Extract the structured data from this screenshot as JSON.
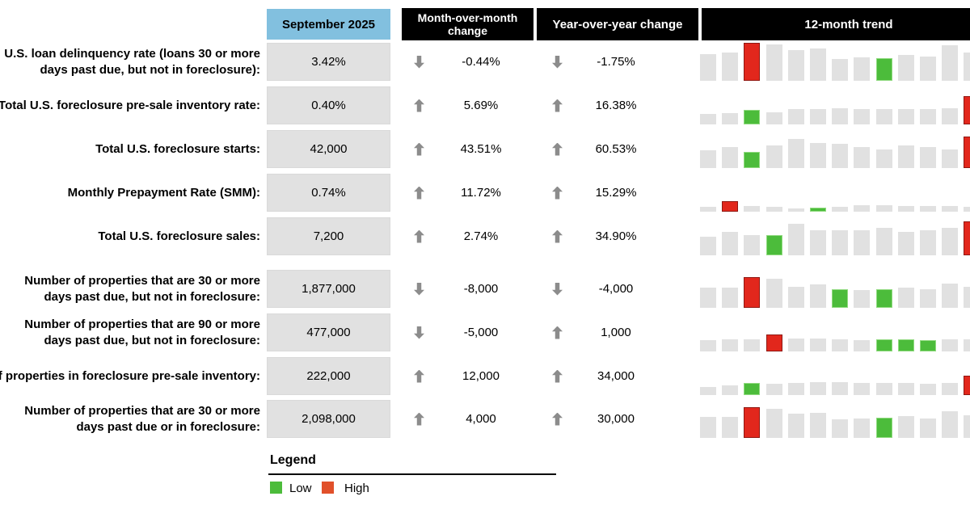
{
  "header": {
    "period": "September 2025",
    "mom": "Month-over-month change",
    "yoy": "Year-over-year change",
    "trend": "12-month trend"
  },
  "legend": {
    "title": "Legend",
    "low_label": "Low",
    "high_label": "High"
  },
  "colors": {
    "period_header_bg": "#82C0DF",
    "change_header_bg": "#000000",
    "change_header_text": "#FFFFFF",
    "value_box_bg": "#E1E1E1",
    "bar_gray": "#E1E1E1",
    "bar_low_green": "#4CBC3B",
    "bar_low_border": "#90DA7F",
    "bar_high_red": "#E2271C",
    "bar_high_border": "#8F1812",
    "legend_high_orange": "#E1502A",
    "arrow_gray": "#8C8C8C"
  },
  "rows": [
    {
      "label": "U.S. loan delinquency rate (loans 30 or more\ndays past due, but not in foreclosure):",
      "value": "3.42%",
      "mom": {
        "dir": "down",
        "value": "-0.44%"
      },
      "yoy": {
        "dir": "down",
        "value": "-1.75%"
      },
      "trend": {
        "heights": [
          0.7,
          0.74,
          1.0,
          0.96,
          0.81,
          0.85,
          0.57,
          0.62,
          0.6,
          0.68,
          0.64,
          0.94,
          0.75
        ],
        "marks": [
          "n",
          "n",
          "r",
          "n",
          "n",
          "n",
          "n",
          "n",
          "g",
          "n",
          "n",
          "n",
          "n"
        ]
      }
    },
    {
      "label": "Total U.S. foreclosure pre-sale inventory rate:",
      "value": "0.40%",
      "mom": {
        "dir": "up",
        "value": "5.69%"
      },
      "yoy": {
        "dir": "up",
        "value": "16.38%"
      },
      "trend": {
        "heights": [
          0.27,
          0.29,
          0.38,
          0.32,
          0.4,
          0.41,
          0.43,
          0.41,
          0.41,
          0.41,
          0.41,
          0.43,
          0.74
        ],
        "marks": [
          "n",
          "n",
          "g",
          "n",
          "n",
          "n",
          "n",
          "n",
          "n",
          "n",
          "n",
          "n",
          "r"
        ]
      }
    },
    {
      "label": "Total U.S. foreclosure starts:",
      "value": "42,000",
      "mom": {
        "dir": "up",
        "value": "43.51%"
      },
      "yoy": {
        "dir": "up",
        "value": "60.53%"
      },
      "trend": {
        "heights": [
          0.46,
          0.56,
          0.43,
          0.59,
          0.77,
          0.66,
          0.63,
          0.56,
          0.49,
          0.59,
          0.56,
          0.49,
          0.82
        ],
        "marks": [
          "n",
          "n",
          "g",
          "n",
          "n",
          "n",
          "n",
          "n",
          "n",
          "n",
          "n",
          "n",
          "r"
        ]
      }
    },
    {
      "label": "Monthly Prepayment Rate (SMM):",
      "value": "0.74%",
      "mom": {
        "dir": "up",
        "value": "11.72%"
      },
      "yoy": {
        "dir": "up",
        "value": "15.29%"
      },
      "trend": {
        "heights": [
          0.13,
          0.27,
          0.14,
          0.12,
          0.09,
          0.11,
          0.13,
          0.17,
          0.17,
          0.14,
          0.15,
          0.14,
          0.12
        ],
        "marks": [
          "n",
          "r",
          "n",
          "n",
          "n",
          "g",
          "n",
          "n",
          "n",
          "n",
          "n",
          "n",
          "n"
        ]
      }
    },
    {
      "label": "Total U.S. foreclosure sales:",
      "value": "7,200",
      "mom": {
        "dir": "up",
        "value": "2.74%"
      },
      "yoy": {
        "dir": "up",
        "value": "34.90%"
      },
      "trend": {
        "heights": [
          0.49,
          0.61,
          0.53,
          0.53,
          0.82,
          0.66,
          0.66,
          0.66,
          0.72,
          0.61,
          0.66,
          0.72,
          0.9
        ],
        "marks": [
          "n",
          "n",
          "n",
          "g",
          "n",
          "n",
          "n",
          "n",
          "n",
          "n",
          "n",
          "n",
          "r"
        ]
      }
    },
    {
      "label": "Number of properties that are 30 or more\ndays past due, but not in foreclosure:",
      "value": "1,877,000",
      "mom": {
        "dir": "down",
        "value": "-8,000"
      },
      "yoy": {
        "dir": "down",
        "value": "-4,000"
      },
      "trend": {
        "heights": [
          0.53,
          0.54,
          0.8,
          0.77,
          0.56,
          0.61,
          0.49,
          0.46,
          0.49,
          0.53,
          0.49,
          0.63,
          0.56
        ],
        "marks": [
          "n",
          "n",
          "r",
          "n",
          "n",
          "n",
          "g",
          "n",
          "g",
          "n",
          "n",
          "n",
          "n"
        ]
      }
    },
    {
      "label": "Number of properties that are 90 or more\ndays past due, but not in foreclosure:",
      "value": "477,000",
      "mom": {
        "dir": "down",
        "value": "-5,000"
      },
      "yoy": {
        "dir": "up",
        "value": "1,000"
      },
      "trend": {
        "heights": [
          0.3,
          0.32,
          0.32,
          0.45,
          0.33,
          0.33,
          0.31,
          0.3,
          0.31,
          0.31,
          0.3,
          0.31,
          0.31
        ],
        "marks": [
          "n",
          "n",
          "n",
          "r",
          "n",
          "n",
          "n",
          "n",
          "g",
          "g",
          "g",
          "n",
          "n"
        ]
      }
    },
    {
      "label": "Number of properties in foreclosure pre-sale inventory:",
      "value": "222,000",
      "mom": {
        "dir": "up",
        "value": "12,000"
      },
      "yoy": {
        "dir": "up",
        "value": "34,000"
      },
      "trend": {
        "heights": [
          0.22,
          0.25,
          0.31,
          0.29,
          0.31,
          0.33,
          0.33,
          0.31,
          0.31,
          0.31,
          0.29,
          0.31,
          0.51
        ],
        "marks": [
          "n",
          "n",
          "g",
          "n",
          "n",
          "n",
          "n",
          "n",
          "n",
          "n",
          "n",
          "n",
          "r"
        ]
      }
    },
    {
      "label": "Number of properties that are 30 or more\ndays past due or in foreclosure:",
      "value": "2,098,000",
      "mom": {
        "dir": "up",
        "value": "4,000"
      },
      "yoy": {
        "dir": "up",
        "value": "30,000"
      },
      "trend": {
        "heights": [
          0.56,
          0.56,
          0.8,
          0.76,
          0.63,
          0.67,
          0.48,
          0.51,
          0.54,
          0.57,
          0.52,
          0.7,
          0.59
        ],
        "marks": [
          "n",
          "n",
          "r",
          "n",
          "n",
          "n",
          "n",
          "n",
          "g",
          "n",
          "n",
          "n",
          "n"
        ]
      }
    }
  ],
  "chart_data": {
    "type": "table",
    "columns": [
      "Metric",
      "September 2025",
      "Month-over-month change",
      "Year-over-year change",
      "12-month trend"
    ],
    "rows": [
      {
        "metric": "U.S. loan delinquency rate (loans 30 or more days past due, but not in foreclosure)",
        "september_2025": "3.42%",
        "mom_change": "-0.44%",
        "yoy_change": "-1.75%"
      },
      {
        "metric": "Total U.S. foreclosure pre-sale inventory rate",
        "september_2025": "0.40%",
        "mom_change": "5.69%",
        "yoy_change": "16.38%"
      },
      {
        "metric": "Total U.S. foreclosure starts",
        "september_2025": "42,000",
        "mom_change": "43.51%",
        "yoy_change": "60.53%"
      },
      {
        "metric": "Monthly Prepayment Rate (SMM)",
        "september_2025": "0.74%",
        "mom_change": "11.72%",
        "yoy_change": "15.29%"
      },
      {
        "metric": "Total U.S. foreclosure sales",
        "september_2025": "7,200",
        "mom_change": "2.74%",
        "yoy_change": "34.90%"
      },
      {
        "metric": "Number of properties that are 30 or more days past due, but not in foreclosure",
        "september_2025": "1,877,000",
        "mom_change": "-8,000",
        "yoy_change": "-4,000"
      },
      {
        "metric": "Number of properties that are 90 or more days past due, but not in foreclosure",
        "september_2025": "477,000",
        "mom_change": "-5,000",
        "yoy_change": "1,000"
      },
      {
        "metric": "Number of properties in foreclosure pre-sale inventory",
        "september_2025": "222,000",
        "mom_change": "12,000",
        "yoy_change": "34,000"
      },
      {
        "metric": "Number of properties that are 30 or more days past due or in foreclosure",
        "september_2025": "2,098,000",
        "mom_change": "4,000",
        "yoy_change": "30,000"
      }
    ],
    "trend": {
      "legend": {
        "low": "green",
        "high": "red"
      },
      "note": "Each row shows an unlabeled 13-bar mini bar chart (12-month trend, rightmost bar clipped at image edge); relative bar heights and low/high marks are stored in rows[].trend"
    }
  }
}
